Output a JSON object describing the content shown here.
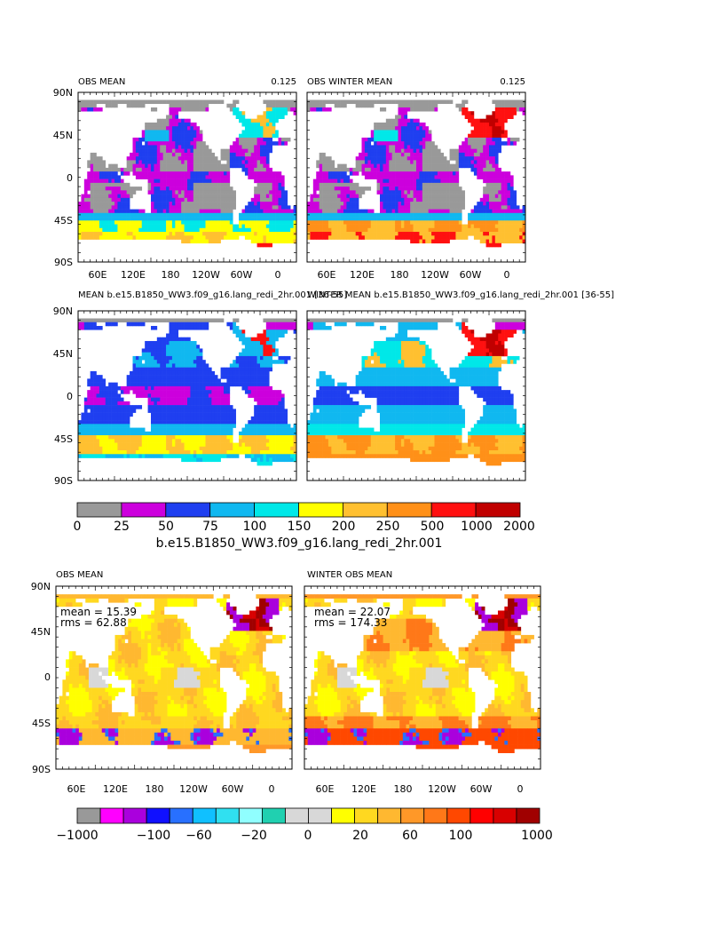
{
  "chart_data": {
    "type": "heatmap",
    "title": "",
    "lat_ticks": [
      "90N",
      "45N",
      "0",
      "45S",
      "90S"
    ],
    "lon_ticks": [
      "60E",
      "120E",
      "180",
      "120W",
      "60W",
      "0"
    ],
    "palette": {
      "land": "#ffffff",
      "background": "#ffffff"
    },
    "panels": [
      {
        "id": "p1",
        "title_left": "OBS MEAN",
        "title_right": "0.125",
        "scheme": "abs",
        "field": "obs_mean",
        "show_lon_labels": true
      },
      {
        "id": "p2",
        "title_left": "OBS WINTER MEAN",
        "title_right": "0.125",
        "scheme": "abs",
        "field": "obs_winter",
        "show_lon_labels": true
      },
      {
        "id": "p3",
        "title_left": "MEAN b.e15.B1850_WW3.f09_g16.lang_redi_2hr.001 [36-55]",
        "title_right": "",
        "scheme": "abs",
        "field": "model_mean",
        "show_lon_labels": false
      },
      {
        "id": "p4",
        "title_left": "WINTER MEAN b.e15.B1850_WW3.f09_g16.lang_redi_2hr.001 [36-55]",
        "title_right": "",
        "scheme": "abs",
        "field": "model_winter",
        "show_lon_labels": false
      },
      {
        "id": "p5",
        "title_left": "OBS MEAN",
        "title_right": "",
        "scheme": "diff",
        "field": "diff_mean",
        "show_lon_labels": true,
        "stats": {
          "mean": "mean = 15.39",
          "rms": "rms = 62.88"
        }
      },
      {
        "id": "p6",
        "title_left": "WINTER OBS MEAN",
        "title_right": "",
        "scheme": "diff",
        "field": "diff_winter",
        "show_lon_labels": true,
        "stats": {
          "mean": "mean = 22.07",
          "rms": "rms = 174.33"
        }
      }
    ],
    "colorbar_abs": {
      "label": "b.e15.B1850_WW3.f09_g16.lang_redi_2hr.001",
      "labels": [
        "0",
        "25",
        "50",
        "75",
        "100",
        "150",
        "200",
        "250",
        "500",
        "1000",
        "2000"
      ],
      "colors": [
        "#999999",
        "#cc00dd",
        "#1f3ff0",
        "#10b8f0",
        "#00e8e8",
        "#ffff00",
        "#ffc030",
        "#ff9018",
        "#ff1010",
        "#c00000"
      ]
    },
    "colorbar_diff": {
      "labels": [
        "−1000",
        "−100",
        "−60",
        "−20",
        "0",
        "20",
        "60",
        "100",
        "1000"
      ],
      "colors": [
        "#999999",
        "#ff00ff",
        "#aa00dd",
        "#1010ff",
        "#2870ff",
        "#10c0ff",
        "#30e0f0",
        "#90ffff",
        "#20d0b0",
        "#d8d8d8",
        "#d8d8d8",
        "#ffff00",
        "#ffd820",
        "#ffb830",
        "#ff9828",
        "#ff7818",
        "#ff4800",
        "#ff0000",
        "#d80000",
        "#a00000"
      ]
    }
  }
}
